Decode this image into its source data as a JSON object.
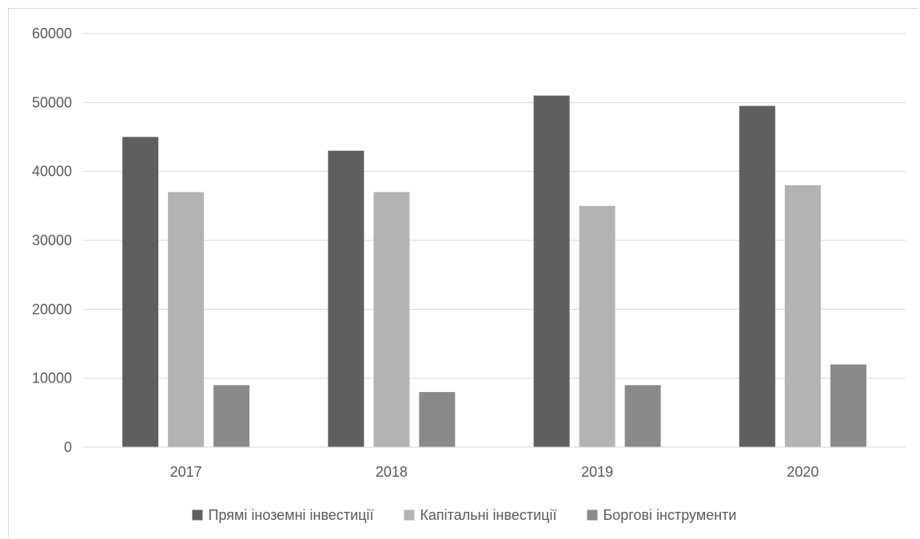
{
  "chart_data": {
    "type": "bar",
    "title": "",
    "xlabel": "",
    "ylabel": "",
    "categories": [
      "2017",
      "2018",
      "2019",
      "2020"
    ],
    "series": [
      {
        "name": "Прямі іноземні інвестиції",
        "values": [
          45000,
          43000,
          51000,
          49500
        ],
        "color": "#5f5f5f"
      },
      {
        "name": "Капітальні інвестиції",
        "values": [
          37000,
          37000,
          35000,
          38000
        ],
        "color": "#b3b3b3"
      },
      {
        "name": "Боргові інструменти",
        "values": [
          9000,
          8000,
          9000,
          12000
        ],
        "color": "#8a8a8a"
      }
    ],
    "ylim": [
      0,
      60000
    ],
    "yticks": [
      "0",
      "10000",
      "20000",
      "30000",
      "40000",
      "50000",
      "60000"
    ],
    "grid": true,
    "legend_position": "bottom"
  }
}
